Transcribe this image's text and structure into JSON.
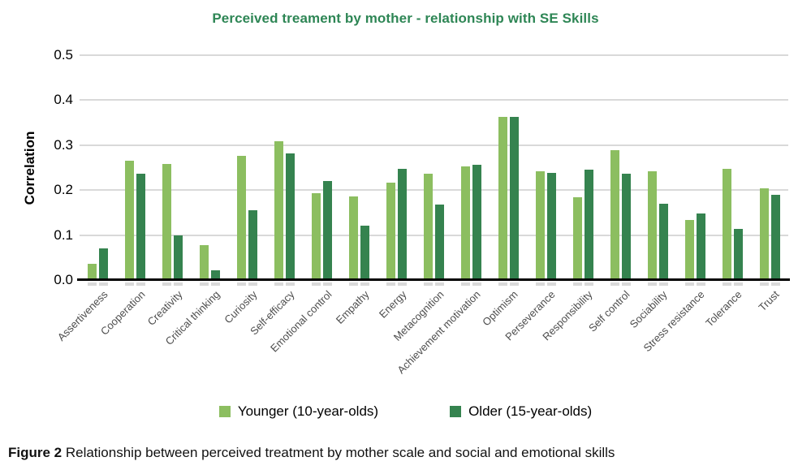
{
  "chart": {
    "title": "Perceived treament by mother - relationship with SE Skills",
    "title_color": "#2e8655",
    "gridline_color": "#d9d9d9",
    "caption_label": "Figure 2",
    "caption_text": " Relationship between perceived treatment by mother scale and social and emotional skills"
  },
  "chart_data": {
    "type": "bar",
    "title": "Perceived treament by mother - relationship with SE Skills",
    "xlabel": "",
    "ylabel": "Correlation",
    "ylim": [
      0,
      0.5
    ],
    "yticks": [
      0.0,
      0.1,
      0.2,
      0.3,
      0.4,
      0.5
    ],
    "grid": true,
    "legend_position": "bottom",
    "categories": [
      "Assertiveness",
      "Cooperation",
      "Creativity",
      "Critical thinking",
      "Curiosity",
      "Self-efficacy",
      "Emotional control",
      "Empathy",
      "Energy",
      "Metacognition",
      "Achievement motivation",
      "Optimism",
      "Perseverance",
      "Responsibility",
      "Self control",
      "Sociability",
      "Stress resistance",
      "Tolerance",
      "Trust"
    ],
    "series": [
      {
        "name": "Younger (10-year-olds)",
        "color": "#8cbe60",
        "values": [
          0.037,
          0.265,
          0.258,
          0.077,
          0.277,
          0.308,
          0.193,
          0.186,
          0.217,
          0.236,
          0.252,
          0.362,
          0.242,
          0.184,
          0.289,
          0.241,
          0.133,
          0.248,
          0.204
        ]
      },
      {
        "name": "Older (15-year-olds)",
        "color": "#35834f",
        "values": [
          0.071,
          0.236,
          0.099,
          0.022,
          0.156,
          0.281,
          0.221,
          0.121,
          0.248,
          0.167,
          0.256,
          0.362,
          0.238,
          0.245,
          0.236,
          0.17,
          0.148,
          0.114,
          0.189
        ]
      }
    ]
  }
}
